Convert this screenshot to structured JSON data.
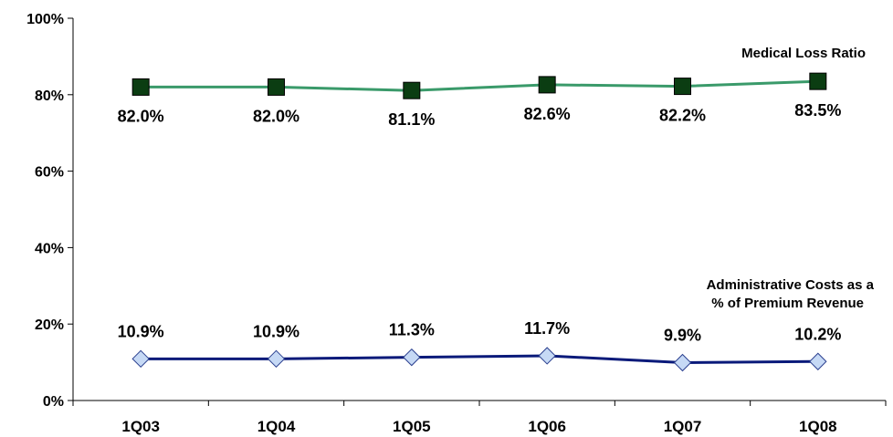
{
  "chart_data": {
    "type": "line",
    "categories": [
      "1Q03",
      "1Q04",
      "1Q05",
      "1Q06",
      "1Q07",
      "1Q08"
    ],
    "ylim": [
      0,
      100
    ],
    "y_ticks": [
      "0%",
      "20%",
      "40%",
      "60%",
      "80%",
      "100%"
    ],
    "y_tick_values": [
      0,
      20,
      40,
      60,
      80,
      100
    ],
    "grid": false,
    "legend": "none",
    "series": [
      {
        "name": "Medical Loss Ratio",
        "values": [
          82.0,
          82.0,
          81.1,
          82.6,
          82.2,
          83.5
        ],
        "labels": [
          "82.0%",
          "82.0%",
          "81.1%",
          "82.6%",
          "82.2%",
          "83.5%"
        ],
        "line_color": "#3a9a6a",
        "marker": "square",
        "marker_color": "#0b3d12"
      },
      {
        "name_lines": [
          "Administrative Costs as a",
          "% of Premium Revenue"
        ],
        "values": [
          10.9,
          10.9,
          11.3,
          11.7,
          9.9,
          10.2
        ],
        "labels": [
          "10.9%",
          "10.9%",
          "11.3%",
          "11.7%",
          "9.9%",
          "10.2%"
        ],
        "line_color": "#0a1a7a",
        "marker": "diamond",
        "marker_color": "#c6d9f5"
      }
    ]
  }
}
